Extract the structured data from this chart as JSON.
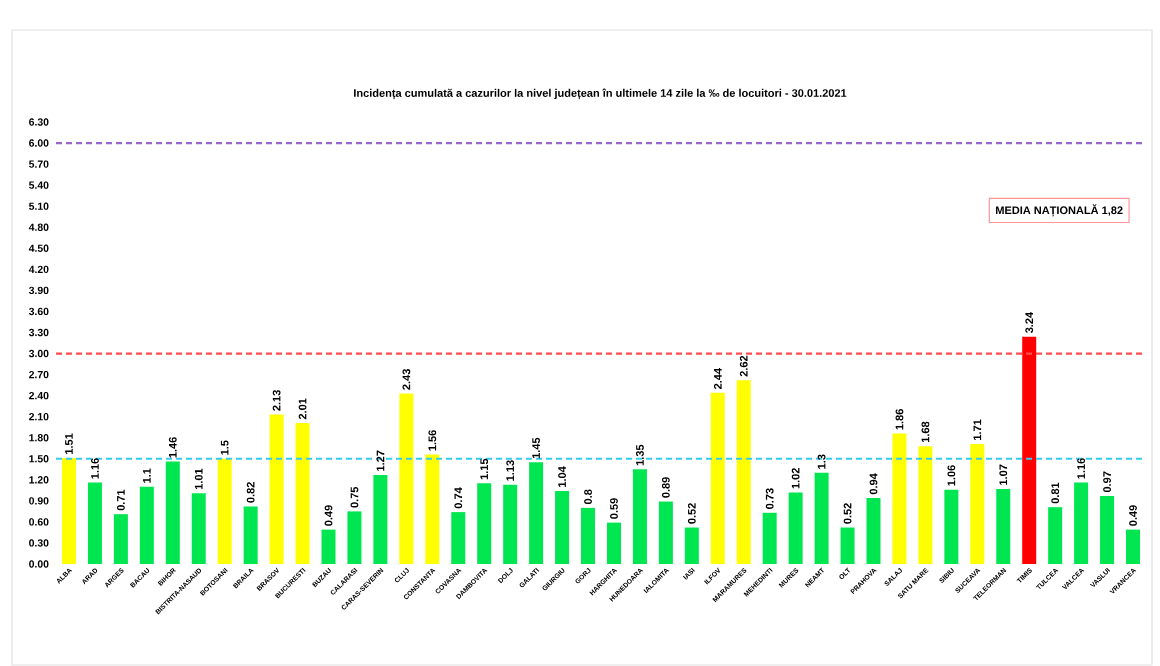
{
  "chart_data": {
    "type": "bar",
    "title": "Incidența cumulată a cazurilor la nivel județean în ultimele 14 zile la ‰ de locuitori - 30.01.2021",
    "categories": [
      "ALBA",
      "ARAD",
      "ARGES",
      "BACAU",
      "BIHOR",
      "BISTRITA-NASAUD",
      "BOTOSANI",
      "BRAILA",
      "BRASOV",
      "BUCURESTI",
      "BUZAU",
      "CALARASI",
      "CARAS-SEVERIN",
      "CLUJ",
      "CONSTANTA",
      "COVASNA",
      "DAMBOVITA",
      "DOLJ",
      "GALATI",
      "GIURGIU",
      "GORJ",
      "HARGHITA",
      "HUNEDOARA",
      "IALOMITA",
      "IASI",
      "ILFOV",
      "MARAMURES",
      "MEHEDINTI",
      "MURES",
      "NEAMT",
      "OLT",
      "PRAHOVA",
      "SALAJ",
      "SATU MARE",
      "SIBIU",
      "SUCEAVA",
      "TELEORMAN",
      "TIMIS",
      "TULCEA",
      "VALCEA",
      "VASLUI",
      "VRANCEA"
    ],
    "values": [
      1.51,
      1.16,
      0.71,
      1.1,
      1.46,
      1.01,
      1.5,
      0.82,
      2.13,
      2.01,
      0.49,
      0.75,
      1.27,
      2.43,
      1.56,
      0.74,
      1.15,
      1.13,
      1.45,
      1.04,
      0.8,
      0.59,
      1.35,
      0.89,
      0.52,
      2.44,
      2.62,
      0.73,
      1.02,
      1.3,
      0.52,
      0.94,
      1.86,
      1.68,
      1.06,
      1.71,
      1.07,
      3.24,
      0.81,
      1.16,
      0.97,
      0.49
    ],
    "colors": [
      "#ffff00",
      "#00e651",
      "#00e651",
      "#00e651",
      "#00e651",
      "#00e651",
      "#ffff00",
      "#00e651",
      "#ffff00",
      "#ffff00",
      "#00e651",
      "#00e651",
      "#00e651",
      "#ffff00",
      "#ffff00",
      "#00e651",
      "#00e651",
      "#00e651",
      "#00e651",
      "#00e651",
      "#00e651",
      "#00e651",
      "#00e651",
      "#00e651",
      "#00e651",
      "#ffff00",
      "#ffff00",
      "#00e651",
      "#00e651",
      "#00e651",
      "#00e651",
      "#00e651",
      "#ffff00",
      "#ffff00",
      "#00e651",
      "#ffff00",
      "#00e651",
      "#ff0000",
      "#00e651",
      "#00e651",
      "#00e651",
      "#00e651"
    ],
    "data_labels": true,
    "ylim": [
      0,
      6.3
    ],
    "yticks": [
      {
        "value": 0,
        "label": "0.00"
      },
      {
        "value": 0.3,
        "label": "0.30"
      },
      {
        "value": 0.6,
        "label": "0.60"
      },
      {
        "value": 0.9,
        "label": "0.90"
      },
      {
        "value": 1.2,
        "label": "1.20"
      },
      {
        "value": 1.5,
        "label": "1.50"
      },
      {
        "value": 1.8,
        "label": "1.80"
      },
      {
        "value": 2.1,
        "label": "2.10"
      },
      {
        "value": 2.4,
        "label": "2.40"
      },
      {
        "value": 2.7,
        "label": "2.70"
      },
      {
        "value": 3.0,
        "label": "3.00"
      },
      {
        "value": 3.3,
        "label": "3.30"
      },
      {
        "value": 3.6,
        "label": "3.60"
      },
      {
        "value": 3.9,
        "label": "3.90"
      },
      {
        "value": 4.2,
        "label": "4.20"
      },
      {
        "value": 4.5,
        "label": "4.50"
      },
      {
        "value": 4.8,
        "label": "4.80"
      },
      {
        "value": 5.1,
        "label": "5.10"
      },
      {
        "value": 5.4,
        "label": "5.40"
      },
      {
        "value": 5.7,
        "label": "5.70"
      },
      {
        "value": 6.0,
        "label": "6.00"
      },
      {
        "value": 6.3,
        "label": "6.30"
      }
    ],
    "ref_lines": [
      {
        "axis": "y",
        "value": 6,
        "color": "#9966cc",
        "line_style": "dashed"
      },
      {
        "axis": "y",
        "value": 3,
        "color": "#ff4d4d",
        "line_style": "dashed"
      },
      {
        "axis": "y",
        "value": 1.5,
        "color": "#33ccee",
        "line_style": "dashed"
      }
    ],
    "annotations": [
      "MEDIA NAȚIONALĂ  1,82"
    ]
  }
}
